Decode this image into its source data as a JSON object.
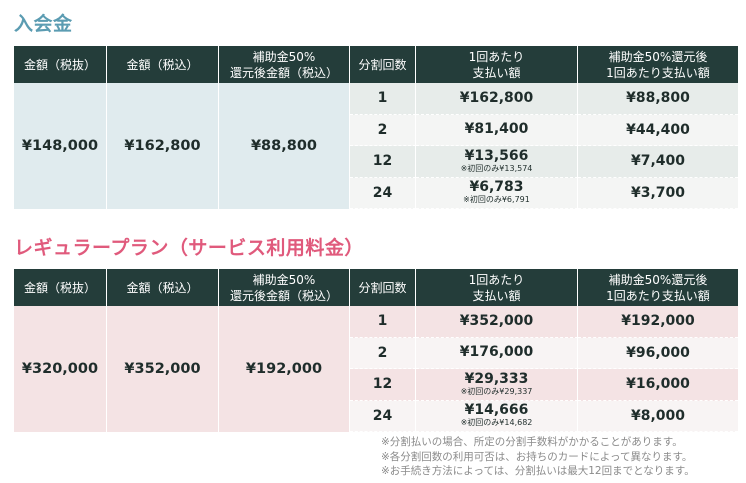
{
  "section1": {
    "title": "入会金",
    "headers": [
      "金額（税抜）",
      "金額（税込）",
      "補助金50%\n還元後金額（税込）",
      "分割回数",
      "1回あたり\n支払い額",
      "補助金50%還元後\n1回あたり支払い額"
    ],
    "price_ex_tax": "¥148,000",
    "price_in_tax": "¥162,800",
    "price_after_subsidy": "¥88,800",
    "rows": [
      {
        "count": "1",
        "per": "¥162,800",
        "note": "",
        "subsidy_per": "¥88,800"
      },
      {
        "count": "2",
        "per": "¥81,400",
        "note": "",
        "subsidy_per": "¥44,400"
      },
      {
        "count": "12",
        "per": "¥13,566",
        "note": "※初回のみ¥13,574",
        "subsidy_per": "¥7,400"
      },
      {
        "count": "24",
        "per": "¥6,783",
        "note": "※初回のみ¥6,791",
        "subsidy_per": "¥3,700"
      }
    ]
  },
  "section2": {
    "title": "レギュラープラン（サービス利用料金）",
    "headers": [
      "金額（税抜）",
      "金額（税込）",
      "補助金50%\n還元後金額（税込）",
      "分割回数",
      "1回あたり\n支払い額",
      "補助金50%還元後\n1回あたり支払い額"
    ],
    "price_ex_tax": "¥320,000",
    "price_in_tax": "¥352,000",
    "price_after_subsidy": "¥192,000",
    "rows": [
      {
        "count": "1",
        "per": "¥352,000",
        "note": "",
        "subsidy_per": "¥192,000"
      },
      {
        "count": "2",
        "per": "¥176,000",
        "note": "",
        "subsidy_per": "¥96,000"
      },
      {
        "count": "12",
        "per": "¥29,333",
        "note": "※初回のみ¥29,337",
        "subsidy_per": "¥16,000"
      },
      {
        "count": "24",
        "per": "¥14,666",
        "note": "※初回のみ¥14,682",
        "subsidy_per": "¥8,000"
      }
    ]
  },
  "footnotes": [
    "※分割払いの場合、所定の分割手数料がかかることがあります。",
    "※各分割回数の利用可否は、お持ちのカードによって異なります。",
    "※お手続き方法によっては、分割払いは最大12回までとなります。"
  ]
}
